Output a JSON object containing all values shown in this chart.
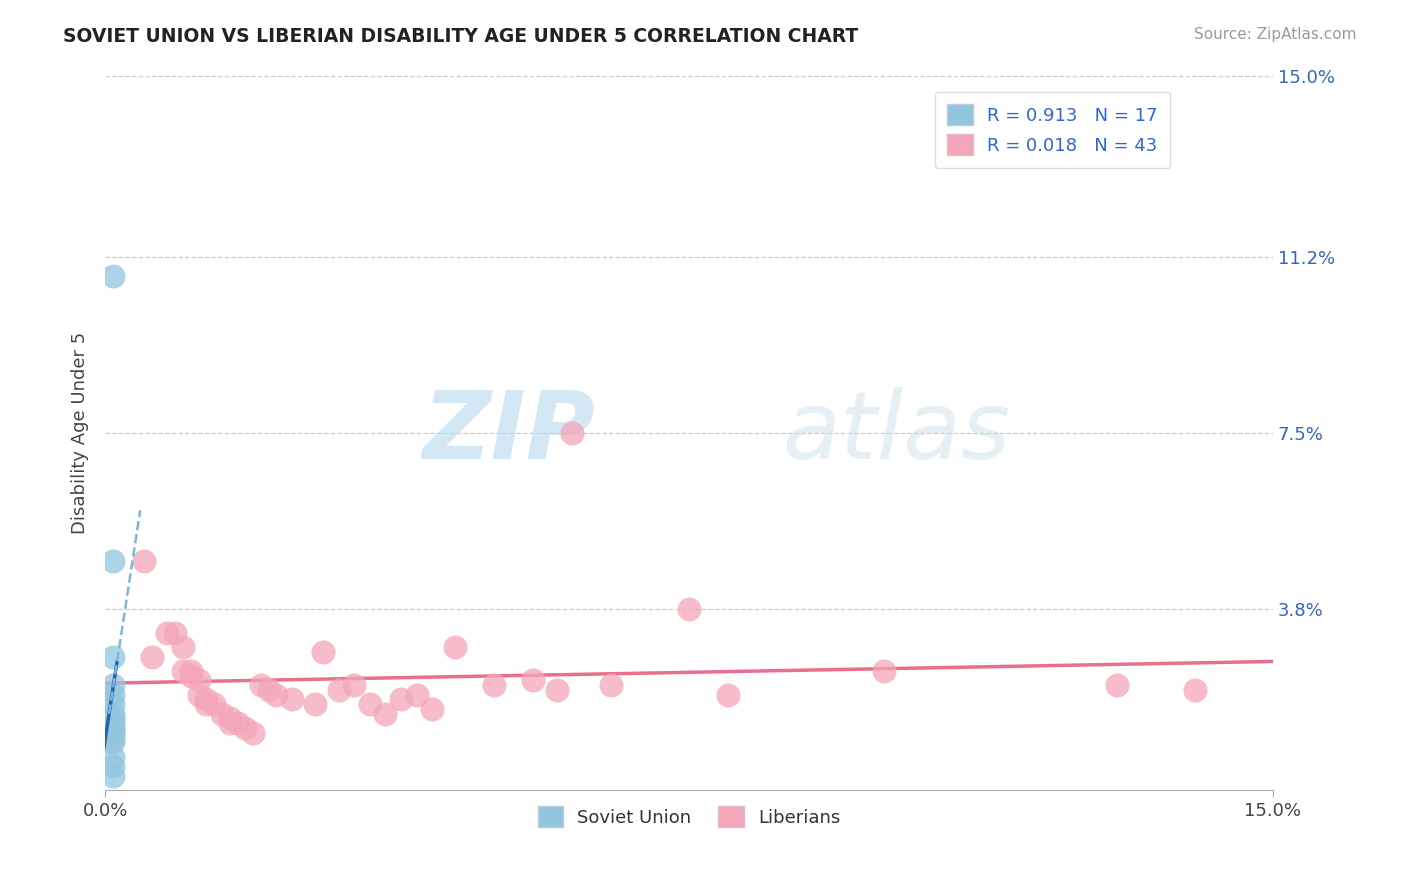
{
  "title": "SOVIET UNION VS LIBERIAN DISABILITY AGE UNDER 5 CORRELATION CHART",
  "source_text": "Source: ZipAtlas.com",
  "ylabel": "Disability Age Under 5",
  "xmin": 0.0,
  "xmax": 0.15,
  "ymin": 0.0,
  "ymax": 0.15,
  "yticks": [
    0.0,
    0.038,
    0.075,
    0.112,
    0.15
  ],
  "ytick_labels": [
    "",
    "3.8%",
    "7.5%",
    "11.2%",
    "15.0%"
  ],
  "xticks": [
    0.0,
    0.15
  ],
  "xtick_labels": [
    "0.0%",
    "15.0%"
  ],
  "soviet_color": "#92c5de",
  "liberian_color": "#f4a6b8",
  "soviet_line_color": "#2166ac",
  "liberian_line_color": "#e8708a",
  "watermark_zip": "ZIP",
  "watermark_atlas": "atlas",
  "soviet_points": [
    [
      0.001,
      0.108
    ],
    [
      0.001,
      0.048
    ],
    [
      0.001,
      0.028
    ],
    [
      0.001,
      0.022
    ],
    [
      0.001,
      0.02
    ],
    [
      0.001,
      0.018
    ],
    [
      0.001,
      0.016
    ],
    [
      0.001,
      0.015
    ],
    [
      0.001,
      0.014
    ],
    [
      0.001,
      0.013
    ],
    [
      0.001,
      0.013
    ],
    [
      0.001,
      0.012
    ],
    [
      0.001,
      0.011
    ],
    [
      0.001,
      0.01
    ],
    [
      0.001,
      0.007
    ],
    [
      0.001,
      0.005
    ],
    [
      0.001,
      0.003
    ]
  ],
  "liberian_points": [
    [
      0.005,
      0.048
    ],
    [
      0.006,
      0.028
    ],
    [
      0.008,
      0.033
    ],
    [
      0.009,
      0.033
    ],
    [
      0.01,
      0.03
    ],
    [
      0.01,
      0.025
    ],
    [
      0.011,
      0.025
    ],
    [
      0.011,
      0.024
    ],
    [
      0.012,
      0.023
    ],
    [
      0.012,
      0.02
    ],
    [
      0.013,
      0.019
    ],
    [
      0.013,
      0.018
    ],
    [
      0.014,
      0.018
    ],
    [
      0.015,
      0.016
    ],
    [
      0.016,
      0.015
    ],
    [
      0.016,
      0.014
    ],
    [
      0.017,
      0.014
    ],
    [
      0.018,
      0.013
    ],
    [
      0.019,
      0.012
    ],
    [
      0.02,
      0.022
    ],
    [
      0.021,
      0.021
    ],
    [
      0.022,
      0.02
    ],
    [
      0.024,
      0.019
    ],
    [
      0.027,
      0.018
    ],
    [
      0.028,
      0.029
    ],
    [
      0.03,
      0.021
    ],
    [
      0.032,
      0.022
    ],
    [
      0.034,
      0.018
    ],
    [
      0.036,
      0.016
    ],
    [
      0.038,
      0.019
    ],
    [
      0.04,
      0.02
    ],
    [
      0.042,
      0.017
    ],
    [
      0.045,
      0.03
    ],
    [
      0.05,
      0.022
    ],
    [
      0.055,
      0.023
    ],
    [
      0.058,
      0.021
    ],
    [
      0.06,
      0.075
    ],
    [
      0.065,
      0.022
    ],
    [
      0.075,
      0.038
    ],
    [
      0.08,
      0.02
    ],
    [
      0.1,
      0.025
    ],
    [
      0.13,
      0.022
    ],
    [
      0.14,
      0.021
    ]
  ]
}
